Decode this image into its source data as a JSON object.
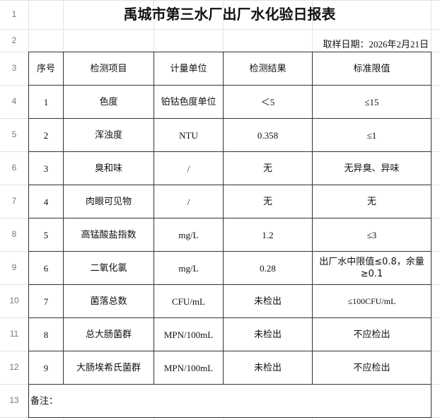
{
  "row_numbers": [
    "1",
    "2",
    "3",
    "4",
    "5",
    "6",
    "7",
    "8",
    "9",
    "10",
    "11",
    "12",
    "13"
  ],
  "title": "禹城市第三水厂出厂水化验日报表",
  "sample_date": "取样日期：2026年2月21日",
  "headers": [
    "序号",
    "检测项目",
    "计量单位",
    "检测结果",
    "标准限值"
  ],
  "rows": [
    [
      "1",
      "色度",
      "铂钴色度单位",
      "＜5",
      "≤15"
    ],
    [
      "2",
      "浑浊度",
      "NTU",
      "0.358",
      "≤1"
    ],
    [
      "3",
      "臭和味",
      "/",
      "无",
      "无异臭、异味"
    ],
    [
      "4",
      "肉眼可见物",
      "/",
      "无",
      "无"
    ],
    [
      "5",
      "高锰酸盐指数",
      "mg/L",
      "1.2",
      "≤3"
    ],
    [
      "6",
      "二氧化氯",
      "mg/L",
      "0.28",
      "出厂水中限值≤0.8，余量≥0.1"
    ],
    [
      "7",
      "菌落总数",
      "CFU/mL",
      "未检出",
      "≤100CFU/mL"
    ],
    [
      "8",
      "总大肠菌群",
      "MPN/100mL",
      "未检出",
      "不应检出"
    ],
    [
      "9",
      "大肠埃希氏菌群",
      "MPN/100mL",
      "未检出",
      "不应检出"
    ]
  ],
  "note_label": "备注："
}
